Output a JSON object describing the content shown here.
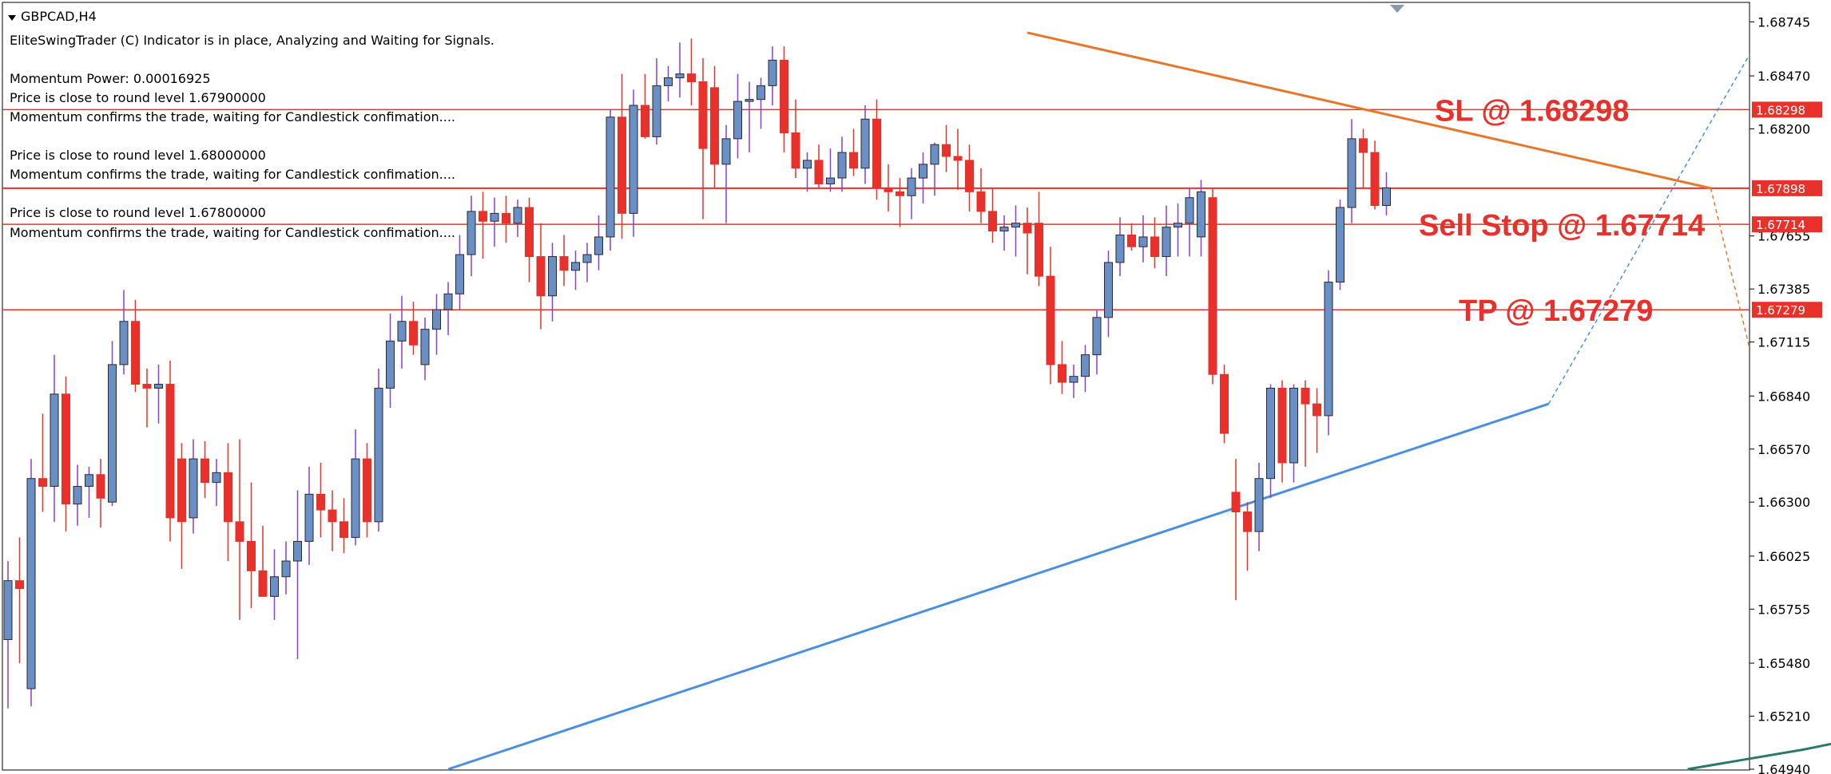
{
  "window": {
    "symbol_title": "GBPCAD,H4"
  },
  "info_lines": [
    "EliteSwingTrader (C) Indicator is in place, Analyzing and Waiting for Signals.",
    "Momentum Power: 0.00016925",
    "Price is close to round level 1.67900000",
    "Momentum confirms the trade, waiting for Candlestick confimation....",
    "Price is close to round level 1.68000000",
    "Momentum confirms the trade, waiting for Candlestick confimation....",
    "Price is close to round level 1.67800000",
    "Momentum confirms the trade, waiting for Candlestick confimation...."
  ],
  "colors": {
    "bull": "#6a8fc6",
    "bear": "#e8312b",
    "wick_bull": "#8b3fd0",
    "wick_bear": "#e8312b",
    "level_line": "#e8312b",
    "resistance_trend": "#e8772b",
    "support_trend": "#4a90e2",
    "moving_average": "#2a7a6a",
    "axis": "#000000"
  },
  "chart_data": {
    "type": "candlestick",
    "symbol": "GBPCAD",
    "timeframe": "H4",
    "ylim": [
      1.6494,
      1.6884
    ],
    "y_ticks": [
      "1.68745",
      "1.68470",
      "1.68200",
      "1.67655",
      "1.67385",
      "1.67115",
      "1.66840",
      "1.66570",
      "1.66300",
      "1.66025",
      "1.65755",
      "1.65480",
      "1.65210",
      "1.64940"
    ],
    "levels": [
      {
        "name": "SL",
        "value": 1.68298,
        "tag": "1.68298",
        "label": "SL @ 1.68298"
      },
      {
        "name": "current",
        "value": 1.67898,
        "tag": "1.67898",
        "label": ""
      },
      {
        "name": "Sell Stop",
        "value": 1.67714,
        "tag": "1.67714",
        "label": "Sell Stop @ 1.67714"
      },
      {
        "name": "TP",
        "value": 1.67279,
        "tag": "1.67279",
        "label": "TP @ 1.67279"
      }
    ],
    "candles": [
      {
        "o": 1.656,
        "h": 1.66,
        "l": 1.6525,
        "c": 1.659
      },
      {
        "o": 1.659,
        "h": 1.6612,
        "l": 1.6548,
        "c": 1.6586
      },
      {
        "o": 1.6535,
        "h": 1.6652,
        "l": 1.6526,
        "c": 1.6642
      },
      {
        "o": 1.6642,
        "h": 1.6675,
        "l": 1.6625,
        "c": 1.6638
      },
      {
        "o": 1.6638,
        "h": 1.6705,
        "l": 1.662,
        "c": 1.6685
      },
      {
        "o": 1.6685,
        "h": 1.6694,
        "l": 1.6615,
        "c": 1.6629
      },
      {
        "o": 1.6629,
        "h": 1.6649,
        "l": 1.6618,
        "c": 1.6638
      },
      {
        "o": 1.6638,
        "h": 1.6648,
        "l": 1.6622,
        "c": 1.6644
      },
      {
        "o": 1.6644,
        "h": 1.6652,
        "l": 1.6617,
        "c": 1.6632
      },
      {
        "o": 1.663,
        "h": 1.6712,
        "l": 1.6628,
        "c": 1.67
      },
      {
        "o": 1.67,
        "h": 1.6738,
        "l": 1.6695,
        "c": 1.6722
      },
      {
        "o": 1.6722,
        "h": 1.6733,
        "l": 1.6686,
        "c": 1.669
      },
      {
        "o": 1.669,
        "h": 1.6698,
        "l": 1.6668,
        "c": 1.6688
      },
      {
        "o": 1.6688,
        "h": 1.67,
        "l": 1.667,
        "c": 1.669
      },
      {
        "o": 1.669,
        "h": 1.6702,
        "l": 1.661,
        "c": 1.6622
      },
      {
        "o": 1.6652,
        "h": 1.666,
        "l": 1.6596,
        "c": 1.662
      },
      {
        "o": 1.6622,
        "h": 1.6662,
        "l": 1.6614,
        "c": 1.6652
      },
      {
        "o": 1.6652,
        "h": 1.6661,
        "l": 1.6632,
        "c": 1.664
      },
      {
        "o": 1.664,
        "h": 1.6652,
        "l": 1.6628,
        "c": 1.6645
      },
      {
        "o": 1.6645,
        "h": 1.666,
        "l": 1.66,
        "c": 1.662
      },
      {
        "o": 1.662,
        "h": 1.6662,
        "l": 1.657,
        "c": 1.661
      },
      {
        "o": 1.661,
        "h": 1.664,
        "l": 1.6576,
        "c": 1.6595
      },
      {
        "o": 1.6595,
        "h": 1.6618,
        "l": 1.6585,
        "c": 1.6582
      },
      {
        "o": 1.6582,
        "h": 1.6606,
        "l": 1.657,
        "c": 1.6592
      },
      {
        "o": 1.6592,
        "h": 1.661,
        "l": 1.6583,
        "c": 1.66
      },
      {
        "o": 1.66,
        "h": 1.6636,
        "l": 1.655,
        "c": 1.661
      },
      {
        "o": 1.661,
        "h": 1.6648,
        "l": 1.6598,
        "c": 1.6634
      },
      {
        "o": 1.6634,
        "h": 1.665,
        "l": 1.6612,
        "c": 1.6626
      },
      {
        "o": 1.6626,
        "h": 1.6636,
        "l": 1.6605,
        "c": 1.662
      },
      {
        "o": 1.662,
        "h": 1.6632,
        "l": 1.6604,
        "c": 1.6612
      },
      {
        "o": 1.6612,
        "h": 1.6667,
        "l": 1.6608,
        "c": 1.6652
      },
      {
        "o": 1.6652,
        "h": 1.666,
        "l": 1.6612,
        "c": 1.662
      },
      {
        "o": 1.662,
        "h": 1.6698,
        "l": 1.6615,
        "c": 1.6688
      },
      {
        "o": 1.6688,
        "h": 1.6726,
        "l": 1.6678,
        "c": 1.6712
      },
      {
        "o": 1.6712,
        "h": 1.6735,
        "l": 1.6698,
        "c": 1.6722
      },
      {
        "o": 1.6722,
        "h": 1.6732,
        "l": 1.6705,
        "c": 1.671
      },
      {
        "o": 1.67,
        "h": 1.6724,
        "l": 1.6692,
        "c": 1.6718
      },
      {
        "o": 1.6718,
        "h": 1.6736,
        "l": 1.6705,
        "c": 1.6728
      },
      {
        "o": 1.6728,
        "h": 1.6742,
        "l": 1.6715,
        "c": 1.6736
      },
      {
        "o": 1.6736,
        "h": 1.6766,
        "l": 1.6728,
        "c": 1.6756
      },
      {
        "o": 1.6756,
        "h": 1.6786,
        "l": 1.6745,
        "c": 1.6778
      },
      {
        "o": 1.6778,
        "h": 1.6788,
        "l": 1.6754,
        "c": 1.6773
      },
      {
        "o": 1.6773,
        "h": 1.6785,
        "l": 1.676,
        "c": 1.6777
      },
      {
        "o": 1.6777,
        "h": 1.6786,
        "l": 1.6762,
        "c": 1.6772
      },
      {
        "o": 1.6772,
        "h": 1.6784,
        "l": 1.6765,
        "c": 1.678
      },
      {
        "o": 1.678,
        "h": 1.6785,
        "l": 1.6742,
        "c": 1.6755
      },
      {
        "o": 1.6755,
        "h": 1.6772,
        "l": 1.6718,
        "c": 1.6735
      },
      {
        "o": 1.6735,
        "h": 1.6762,
        "l": 1.6722,
        "c": 1.6755
      },
      {
        "o": 1.6755,
        "h": 1.6766,
        "l": 1.674,
        "c": 1.6748
      },
      {
        "o": 1.6748,
        "h": 1.6758,
        "l": 1.6738,
        "c": 1.6752
      },
      {
        "o": 1.6752,
        "h": 1.6762,
        "l": 1.6742,
        "c": 1.6756
      },
      {
        "o": 1.6756,
        "h": 1.6776,
        "l": 1.6748,
        "c": 1.6765
      },
      {
        "o": 1.6765,
        "h": 1.683,
        "l": 1.6758,
        "c": 1.6826
      },
      {
        "o": 1.6826,
        "h": 1.6848,
        "l": 1.6764,
        "c": 1.6777
      },
      {
        "o": 1.6777,
        "h": 1.684,
        "l": 1.6765,
        "c": 1.6832
      },
      {
        "o": 1.6832,
        "h": 1.6848,
        "l": 1.6815,
        "c": 1.6816
      },
      {
        "o": 1.6816,
        "h": 1.6856,
        "l": 1.6812,
        "c": 1.6842
      },
      {
        "o": 1.6842,
        "h": 1.6852,
        "l": 1.6834,
        "c": 1.6846
      },
      {
        "o": 1.6846,
        "h": 1.6864,
        "l": 1.6836,
        "c": 1.6848
      },
      {
        "o": 1.6848,
        "h": 1.6866,
        "l": 1.6832,
        "c": 1.6844
      },
      {
        "o": 1.6844,
        "h": 1.6856,
        "l": 1.6774,
        "c": 1.681
      },
      {
        "o": 1.6841,
        "h": 1.6852,
        "l": 1.679,
        "c": 1.6802
      },
      {
        "o": 1.6802,
        "h": 1.6822,
        "l": 1.6772,
        "c": 1.6815
      },
      {
        "o": 1.6815,
        "h": 1.6848,
        "l": 1.6805,
        "c": 1.6834
      },
      {
        "o": 1.6834,
        "h": 1.6844,
        "l": 1.6808,
        "c": 1.6835
      },
      {
        "o": 1.6835,
        "h": 1.6846,
        "l": 1.682,
        "c": 1.6842
      },
      {
        "o": 1.6842,
        "h": 1.6862,
        "l": 1.6832,
        "c": 1.6855
      },
      {
        "o": 1.6855,
        "h": 1.6862,
        "l": 1.6808,
        "c": 1.6818
      },
      {
        "o": 1.6818,
        "h": 1.6835,
        "l": 1.6795,
        "c": 1.68
      },
      {
        "o": 1.68,
        "h": 1.6808,
        "l": 1.6788,
        "c": 1.6804
      },
      {
        "o": 1.6804,
        "h": 1.6812,
        "l": 1.679,
        "c": 1.6792
      },
      {
        "o": 1.6792,
        "h": 1.681,
        "l": 1.6788,
        "c": 1.6795
      },
      {
        "o": 1.6795,
        "h": 1.6816,
        "l": 1.6788,
        "c": 1.6808
      },
      {
        "o": 1.6808,
        "h": 1.682,
        "l": 1.6796,
        "c": 1.68
      },
      {
        "o": 1.68,
        "h": 1.6832,
        "l": 1.6792,
        "c": 1.6825
      },
      {
        "o": 1.6825,
        "h": 1.6835,
        "l": 1.6784,
        "c": 1.679
      },
      {
        "o": 1.679,
        "h": 1.6802,
        "l": 1.6778,
        "c": 1.6788
      },
      {
        "o": 1.6788,
        "h": 1.6795,
        "l": 1.677,
        "c": 1.6786
      },
      {
        "o": 1.6786,
        "h": 1.68,
        "l": 1.6774,
        "c": 1.6795
      },
      {
        "o": 1.6795,
        "h": 1.6808,
        "l": 1.6782,
        "c": 1.6802
      },
      {
        "o": 1.6802,
        "h": 1.6813,
        "l": 1.6786,
        "c": 1.6812
      },
      {
        "o": 1.6812,
        "h": 1.6822,
        "l": 1.6798,
        "c": 1.6806
      },
      {
        "o": 1.6806,
        "h": 1.682,
        "l": 1.6789,
        "c": 1.6804
      },
      {
        "o": 1.6804,
        "h": 1.6812,
        "l": 1.6778,
        "c": 1.6788
      },
      {
        "o": 1.6788,
        "h": 1.68,
        "l": 1.6772,
        "c": 1.6778
      },
      {
        "o": 1.6778,
        "h": 1.679,
        "l": 1.6762,
        "c": 1.6768
      },
      {
        "o": 1.6768,
        "h": 1.6776,
        "l": 1.6758,
        "c": 1.677
      },
      {
        "o": 1.677,
        "h": 1.6781,
        "l": 1.6755,
        "c": 1.6772
      },
      {
        "o": 1.6772,
        "h": 1.678,
        "l": 1.6746,
        "c": 1.6767
      },
      {
        "o": 1.6772,
        "h": 1.6788,
        "l": 1.674,
        "c": 1.6745
      },
      {
        "o": 1.6745,
        "h": 1.676,
        "l": 1.669,
        "c": 1.67
      },
      {
        "o": 1.67,
        "h": 1.6712,
        "l": 1.6685,
        "c": 1.6691
      },
      {
        "o": 1.6691,
        "h": 1.67,
        "l": 1.6683,
        "c": 1.6694
      },
      {
        "o": 1.6694,
        "h": 1.671,
        "l": 1.6686,
        "c": 1.6705
      },
      {
        "o": 1.6705,
        "h": 1.6728,
        "l": 1.6695,
        "c": 1.6724
      },
      {
        "o": 1.6724,
        "h": 1.6758,
        "l": 1.6714,
        "c": 1.6752
      },
      {
        "o": 1.6752,
        "h": 1.6775,
        "l": 1.6745,
        "c": 1.6766
      },
      {
        "o": 1.6766,
        "h": 1.6772,
        "l": 1.6758,
        "c": 1.676
      },
      {
        "o": 1.676,
        "h": 1.6776,
        "l": 1.6752,
        "c": 1.6765
      },
      {
        "o": 1.6765,
        "h": 1.6775,
        "l": 1.6749,
        "c": 1.6755
      },
      {
        "o": 1.6755,
        "h": 1.6781,
        "l": 1.6745,
        "c": 1.677
      },
      {
        "o": 1.677,
        "h": 1.6782,
        "l": 1.6755,
        "c": 1.6772
      },
      {
        "o": 1.6772,
        "h": 1.679,
        "l": 1.6755,
        "c": 1.6785
      },
      {
        "o": 1.6765,
        "h": 1.6794,
        "l": 1.6755,
        "c": 1.6788
      },
      {
        "o": 1.6785,
        "h": 1.679,
        "l": 1.669,
        "c": 1.6695
      },
      {
        "o": 1.6695,
        "h": 1.67,
        "l": 1.666,
        "c": 1.6665
      },
      {
        "o": 1.6635,
        "h": 1.6652,
        "l": 1.658,
        "c": 1.6625
      },
      {
        "o": 1.6625,
        "h": 1.663,
        "l": 1.6595,
        "c": 1.6615
      },
      {
        "o": 1.6615,
        "h": 1.665,
        "l": 1.6605,
        "c": 1.6642
      },
      {
        "o": 1.6642,
        "h": 1.669,
        "l": 1.6632,
        "c": 1.6688
      },
      {
        "o": 1.6688,
        "h": 1.6692,
        "l": 1.664,
        "c": 1.665
      },
      {
        "o": 1.665,
        "h": 1.669,
        "l": 1.664,
        "c": 1.6688
      },
      {
        "o": 1.6688,
        "h": 1.6692,
        "l": 1.6648,
        "c": 1.668
      },
      {
        "o": 1.668,
        "h": 1.6688,
        "l": 1.6655,
        "c": 1.6674
      },
      {
        "o": 1.6674,
        "h": 1.6748,
        "l": 1.6664,
        "c": 1.6742
      },
      {
        "o": 1.6742,
        "h": 1.6784,
        "l": 1.6738,
        "c": 1.678
      },
      {
        "o": 1.678,
        "h": 1.6825,
        "l": 1.6772,
        "c": 1.6815
      },
      {
        "o": 1.6815,
        "h": 1.682,
        "l": 1.679,
        "c": 1.6808
      },
      {
        "o": 1.6808,
        "h": 1.6814,
        "l": 1.6779,
        "c": 1.6781
      },
      {
        "o": 1.6781,
        "h": 1.6798,
        "l": 1.6776,
        "c": 1.679
      }
    ],
    "trendlines": [
      {
        "name": "resistance",
        "points": [
          [
            88,
            1.6869
          ],
          [
            147,
            1.67898
          ]
        ],
        "extension_to": [
          220,
          1.67085
        ],
        "style": "solid-then-dashed"
      },
      {
        "name": "support",
        "points": [
          [
            38,
            1.6494
          ],
          [
            133,
            1.668
          ]
        ],
        "extension_to": [
          220,
          1.68578
        ],
        "style": "solid-then-dashed"
      }
    ],
    "moving_average_tail": [
      [
        145,
        1.6494
      ],
      [
        150,
        1.6499
      ],
      [
        155,
        1.6504
      ],
      [
        160,
        1.651
      ],
      [
        165,
        1.6518
      ],
      [
        170,
        1.6528
      ],
      [
        173,
        1.6537
      ]
    ]
  }
}
